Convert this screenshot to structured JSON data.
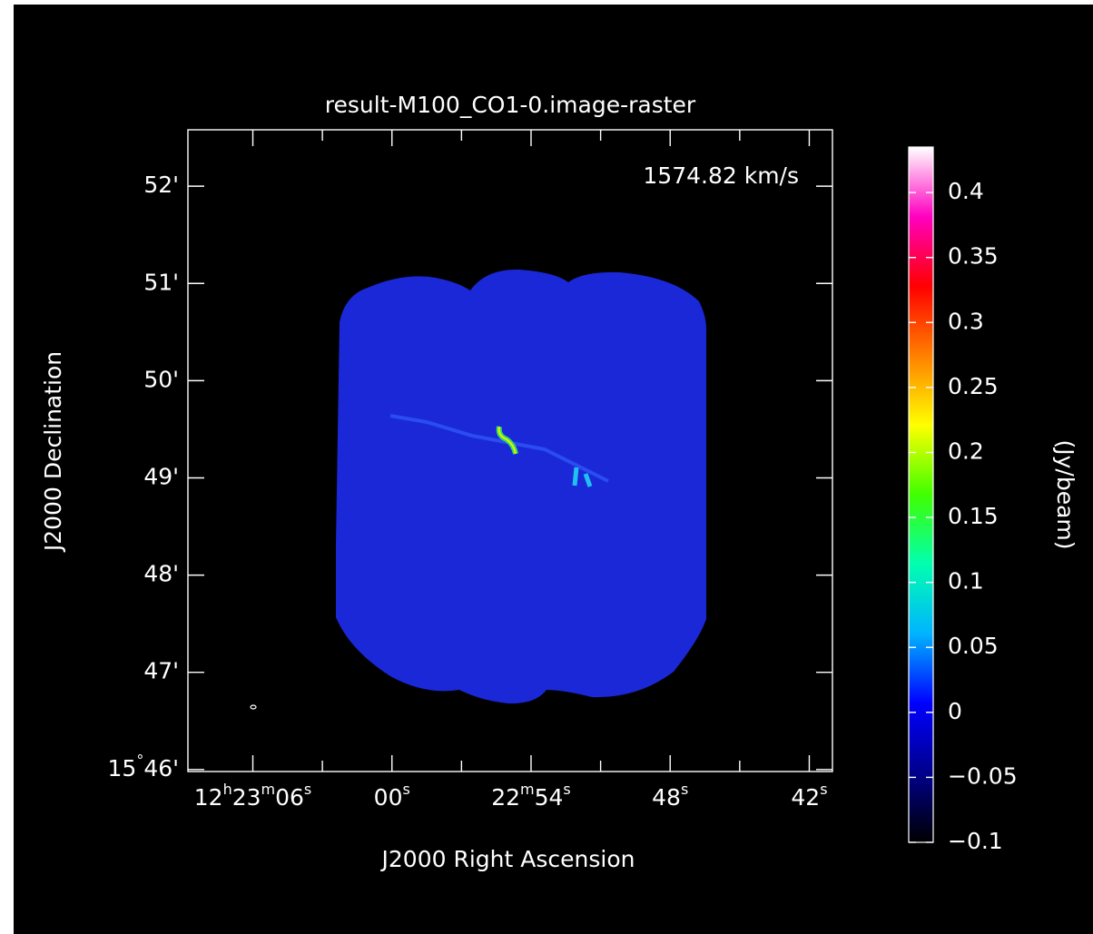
{
  "chart_data": {
    "type": "raster",
    "title": "result-M100_CO1-0.image-raster",
    "annotation": "1574.82 km/s",
    "x_label": "J2000 Right Ascension",
    "y_label": "J2000 Declination",
    "colorbar_label": "(Jy/beam)",
    "xlim": [
      68.8,
      41.0
    ],
    "xticks": [
      {
        "value": 66,
        "label": "12h23m06s"
      },
      {
        "value": 60,
        "label": "00s"
      },
      {
        "value": 54,
        "label": "22m54s"
      },
      {
        "value": 48,
        "label": "48s"
      },
      {
        "value": 42,
        "label": "42s"
      }
    ],
    "xminor": [
      63,
      57,
      51,
      45
    ],
    "ylim": [
      45.98,
      52.58
    ],
    "yticks": [
      {
        "value": 46,
        "label": "15°46'"
      },
      {
        "value": 47,
        "label": "47'"
      },
      {
        "value": 48,
        "label": "48'"
      },
      {
        "value": 49,
        "label": "49'"
      },
      {
        "value": 50,
        "label": "50'"
      },
      {
        "value": 51,
        "label": "51'"
      },
      {
        "value": 52,
        "label": "52'"
      }
    ],
    "clim": [
      -0.1,
      0.435
    ],
    "cticks": [
      {
        "value": -0.1,
        "label": "−0.1"
      },
      {
        "value": -0.05,
        "label": "−0.05"
      },
      0,
      0.05,
      0.1,
      0.15,
      0.2,
      0.25,
      0.3,
      0.35,
      0.4
    ],
    "colormap": [
      "#000000",
      "#00008c",
      "#0000ff",
      "#00b4ff",
      "#00ffb0",
      "#40ff00",
      "#ffff00",
      "#ff8000",
      "#ff0000",
      "#ff00c0",
      "#ffffff"
    ]
  }
}
